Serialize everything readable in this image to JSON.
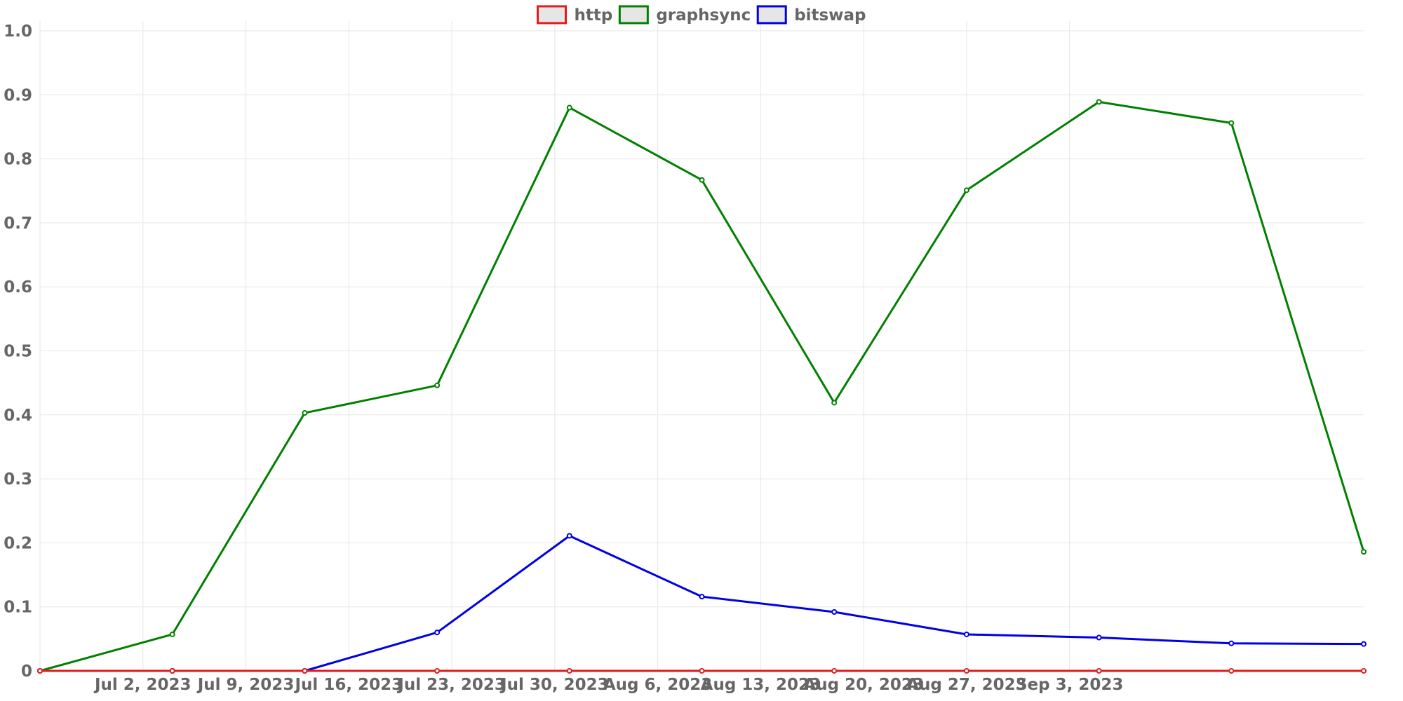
{
  "chart_data": {
    "type": "line",
    "title": "",
    "xlabel": "",
    "ylabel": "",
    "x": [
      "2023-06-25",
      "2023-07-04",
      "2023-07-13",
      "2023-07-22",
      "2023-07-31",
      "2023-08-09",
      "2023-08-18",
      "2023-08-27",
      "2023-09-05",
      "2023-09-14",
      "2023-09-23"
    ],
    "x_ticks": [
      "Jul 2, 2023",
      "Jul 9, 2023",
      "Jul 16, 2023",
      "Jul 23, 2023",
      "Jul 30, 2023",
      "Aug 6, 2023",
      "Aug 13, 2023",
      "Aug 20, 2023",
      "Aug 27, 2023",
      "Sep 3, 2023"
    ],
    "y_ticks": [
      "0",
      "0.1",
      "0.2",
      "0.3",
      "0.4",
      "0.5",
      "0.6",
      "0.7",
      "0.8",
      "0.9",
      "1.0"
    ],
    "ylim": [
      0,
      1.0
    ],
    "grid": true,
    "legend_position": "top-center",
    "series": [
      {
        "name": "http",
        "color": "#e41a1c",
        "values": [
          0,
          0,
          0,
          0,
          0,
          0,
          0,
          0,
          0,
          0,
          0
        ]
      },
      {
        "name": "graphsync",
        "color": "#008000",
        "values": [
          0,
          0.057,
          0.403,
          0.446,
          0.88,
          0.767,
          0.419,
          0.751,
          0.889,
          0.856,
          0.186
        ]
      },
      {
        "name": "bitswap",
        "color": "#0000e6",
        "values": [
          0,
          0,
          0,
          0.06,
          0.211,
          0.116,
          0.092,
          0.057,
          0.052,
          0.043,
          0.042
        ]
      }
    ]
  }
}
